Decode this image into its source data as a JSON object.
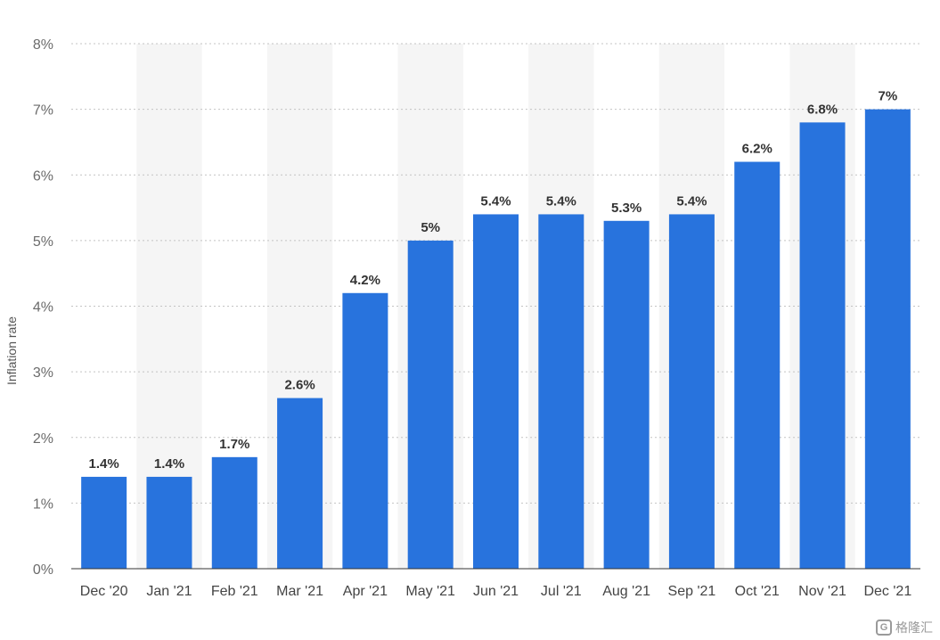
{
  "chart_data": {
    "type": "bar",
    "categories": [
      "Dec '20",
      "Jan '21",
      "Feb '21",
      "Mar '21",
      "Apr '21",
      "May '21",
      "Jun '21",
      "Jul '21",
      "Aug '21",
      "Sep '21",
      "Oct '21",
      "Nov '21",
      "Dec '21"
    ],
    "values": [
      1.4,
      1.4,
      1.7,
      2.6,
      4.2,
      5.0,
      5.4,
      5.4,
      5.3,
      5.4,
      6.2,
      6.8,
      7.0
    ],
    "value_labels": [
      "1.4%",
      "1.4%",
      "1.7%",
      "2.6%",
      "4.2%",
      "5%",
      "5.4%",
      "5.4%",
      "5.3%",
      "5.4%",
      "6.2%",
      "6.8%",
      "7%"
    ],
    "y_ticks": [
      0,
      1,
      2,
      3,
      4,
      5,
      6,
      7,
      8
    ],
    "y_tick_labels": [
      "0%",
      "1%",
      "2%",
      "3%",
      "4%",
      "5%",
      "6%",
      "7%",
      "8%"
    ],
    "ylim": [
      0,
      8
    ],
    "xlabel": "",
    "ylabel": "Inflation rate",
    "grid": "horizontal dotted",
    "alternating_column_bands": true,
    "colors": {
      "bar": "#2873dd",
      "band": "#f5f5f5",
      "grid": "#c4c4c4"
    }
  },
  "watermark": {
    "text": "格隆汇"
  }
}
